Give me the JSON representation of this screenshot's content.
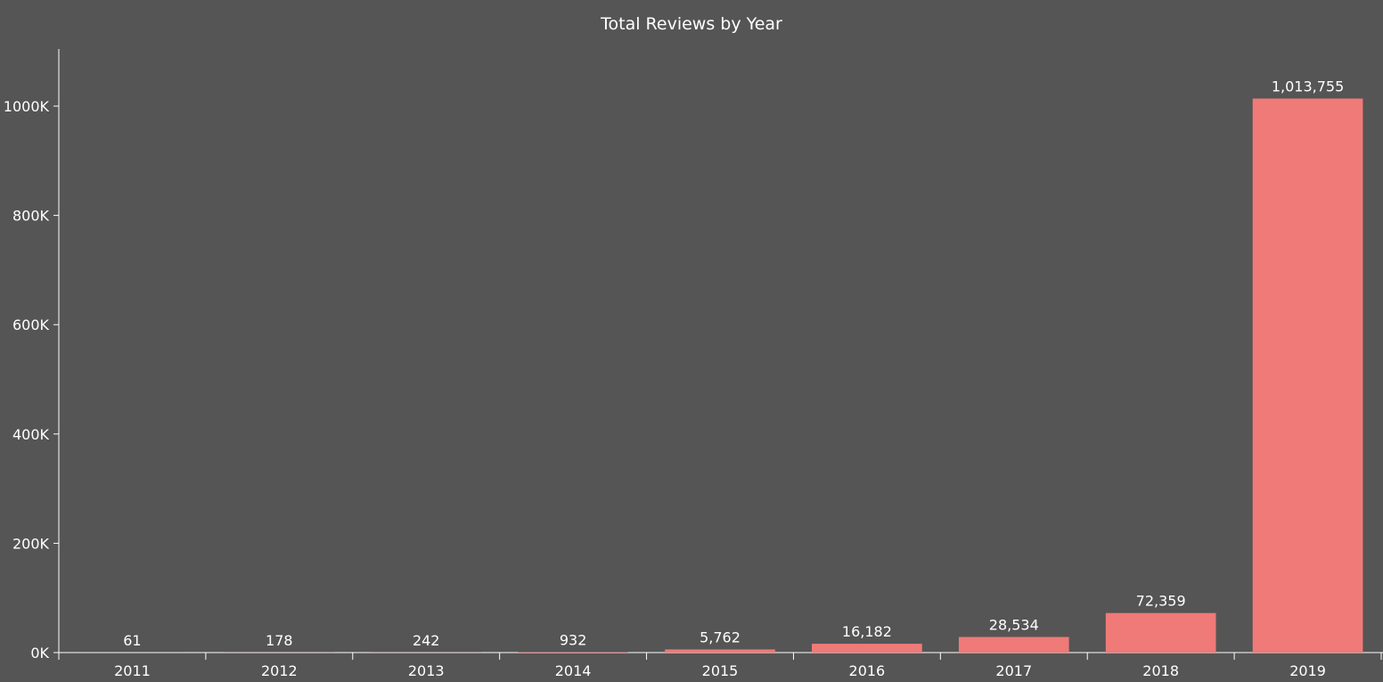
{
  "chart_data": {
    "type": "bar",
    "title": "Total Reviews by Year",
    "xlabel": "",
    "ylabel": "",
    "categories": [
      "2011",
      "2012",
      "2013",
      "2014",
      "2015",
      "2016",
      "2017",
      "2018",
      "2019"
    ],
    "values": [
      61,
      178,
      242,
      932,
      5762,
      16182,
      28534,
      72359,
      1013755
    ],
    "data_labels": [
      "61",
      "178",
      "242",
      "932",
      "5,762",
      "16,182",
      "28,534",
      "72,359",
      "1,013,755"
    ],
    "ylim": [
      0,
      1100000
    ],
    "yticks": [
      0,
      200000,
      400000,
      600000,
      800000,
      1000000
    ],
    "ytick_labels": [
      "0K",
      "200K",
      "400K",
      "600K",
      "800K",
      "1000K"
    ],
    "grid": false,
    "legend": "none"
  },
  "colors": {
    "background": "#555555",
    "bar": "#f07a78",
    "text": "#ffffff",
    "axis": "#ffffff"
  }
}
